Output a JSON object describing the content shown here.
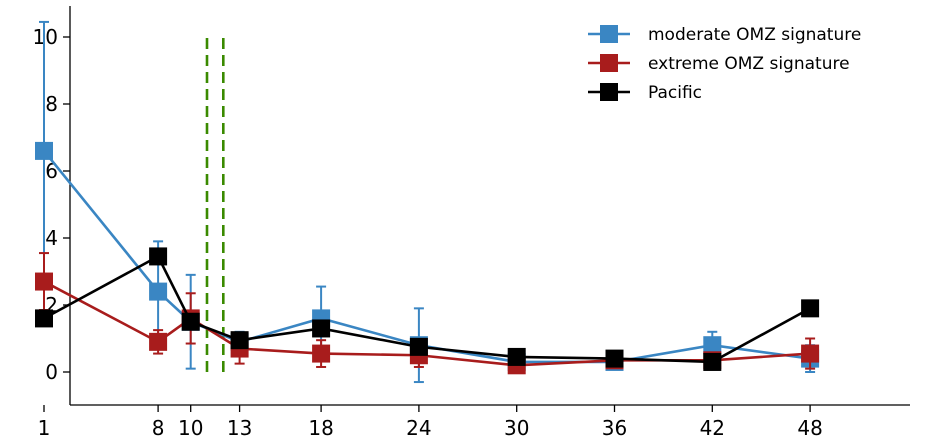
{
  "chart_data": {
    "type": "line",
    "title": "",
    "xlabel": "",
    "ylabel": "",
    "xlim": [
      -1,
      49
    ],
    "ylim": [
      -0.9,
      11
    ],
    "xticks": [
      1,
      8,
      10,
      13,
      18,
      24,
      30,
      36,
      42,
      48
    ],
    "yticks": [
      0,
      2,
      4,
      6,
      8,
      10
    ],
    "grid": false,
    "legend_position": "top-right",
    "vertical_lines": [
      {
        "x": 11,
        "y_range": [
          0,
          10
        ],
        "color": "#3a8a00",
        "style": "dashed"
      },
      {
        "x": 12,
        "y_range": [
          0,
          10
        ],
        "color": "#3a8a00",
        "style": "dashed"
      }
    ],
    "series": [
      {
        "name": "moderate OMZ signature",
        "color": "#3a86c3",
        "x": [
          1,
          8,
          10,
          13,
          18,
          24,
          30,
          36,
          42,
          48
        ],
        "y": [
          6.6,
          2.4,
          1.5,
          0.9,
          1.6,
          0.8,
          0.3,
          0.3,
          0.8,
          0.4
        ],
        "err": [
          3.85,
          1.5,
          1.4,
          0.3,
          0.95,
          1.1,
          0.1,
          0.1,
          0.4,
          0.4
        ]
      },
      {
        "name": "extreme OMZ signature",
        "color": "#a81c1c",
        "x": [
          1,
          8,
          10,
          13,
          18,
          24,
          30,
          36,
          42,
          48
        ],
        "y": [
          2.7,
          0.9,
          1.6,
          0.7,
          0.55,
          0.5,
          0.2,
          0.35,
          0.35,
          0.55
        ],
        "err": [
          0.85,
          0.35,
          0.75,
          0.45,
          0.4,
          0.35,
          0.1,
          0.15,
          0.15,
          0.45
        ]
      },
      {
        "name": "Pacific",
        "color": "#000000",
        "x": [
          1,
          8,
          10,
          13,
          18,
          24,
          30,
          36,
          42,
          48
        ],
        "y": [
          1.6,
          3.45,
          1.5,
          0.95,
          1.3,
          0.75,
          0.45,
          0.4,
          0.3,
          1.9
        ],
        "err": [
          0,
          0,
          0,
          0,
          0,
          0,
          0,
          0,
          0,
          0
        ]
      }
    ]
  }
}
